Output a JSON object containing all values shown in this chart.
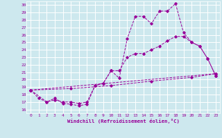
{
  "xlabel": "Windchill (Refroidissement éolien,°C)",
  "bg_color": "#cde8ee",
  "grid_color": "#ffffff",
  "line_color": "#990099",
  "xlim": [
    -0.5,
    23.5
  ],
  "ylim": [
    15.5,
    30.5
  ],
  "yticks": [
    16,
    17,
    18,
    19,
    20,
    21,
    22,
    23,
    24,
    25,
    26,
    27,
    28,
    29,
    30
  ],
  "xticks": [
    0,
    1,
    2,
    3,
    4,
    5,
    6,
    7,
    8,
    9,
    10,
    11,
    12,
    13,
    14,
    15,
    16,
    17,
    18,
    19,
    20,
    21,
    22,
    23
  ],
  "series1": [
    [
      0,
      18.6
    ],
    [
      1,
      17.5
    ],
    [
      2,
      17.0
    ],
    [
      3,
      17.5
    ],
    [
      4,
      16.8
    ],
    [
      5,
      16.7
    ],
    [
      6,
      16.5
    ],
    [
      7,
      16.7
    ],
    [
      8,
      19.2
    ],
    [
      9,
      19.5
    ],
    [
      10,
      21.2
    ],
    [
      11,
      20.2
    ],
    [
      12,
      25.5
    ],
    [
      13,
      28.5
    ],
    [
      14,
      28.5
    ],
    [
      15,
      27.5
    ],
    [
      16,
      29.2
    ],
    [
      17,
      29.2
    ],
    [
      18,
      30.2
    ],
    [
      19,
      26.3
    ],
    [
      20,
      25.0
    ],
    [
      21,
      24.5
    ],
    [
      22,
      22.8
    ],
    [
      23,
      20.5
    ]
  ],
  "series2": [
    [
      0,
      18.6
    ],
    [
      2,
      17.0
    ],
    [
      3,
      17.3
    ],
    [
      4,
      17.0
    ],
    [
      5,
      17.0
    ],
    [
      6,
      16.8
    ],
    [
      7,
      17.0
    ],
    [
      8,
      19.2
    ],
    [
      9,
      19.5
    ],
    [
      10,
      21.2
    ],
    [
      11,
      21.2
    ],
    [
      12,
      23.0
    ],
    [
      13,
      23.5
    ],
    [
      14,
      23.5
    ],
    [
      15,
      24.0
    ],
    [
      16,
      24.5
    ],
    [
      17,
      25.2
    ],
    [
      18,
      25.8
    ],
    [
      19,
      25.8
    ],
    [
      20,
      25.0
    ],
    [
      21,
      24.5
    ],
    [
      22,
      22.8
    ],
    [
      23,
      20.5
    ]
  ],
  "series3": [
    [
      0,
      18.6
    ],
    [
      23,
      20.8
    ]
  ],
  "series4": [
    [
      0,
      18.6
    ],
    [
      5,
      18.8
    ],
    [
      10,
      19.2
    ],
    [
      15,
      19.8
    ],
    [
      20,
      20.3
    ],
    [
      23,
      20.8
    ]
  ]
}
